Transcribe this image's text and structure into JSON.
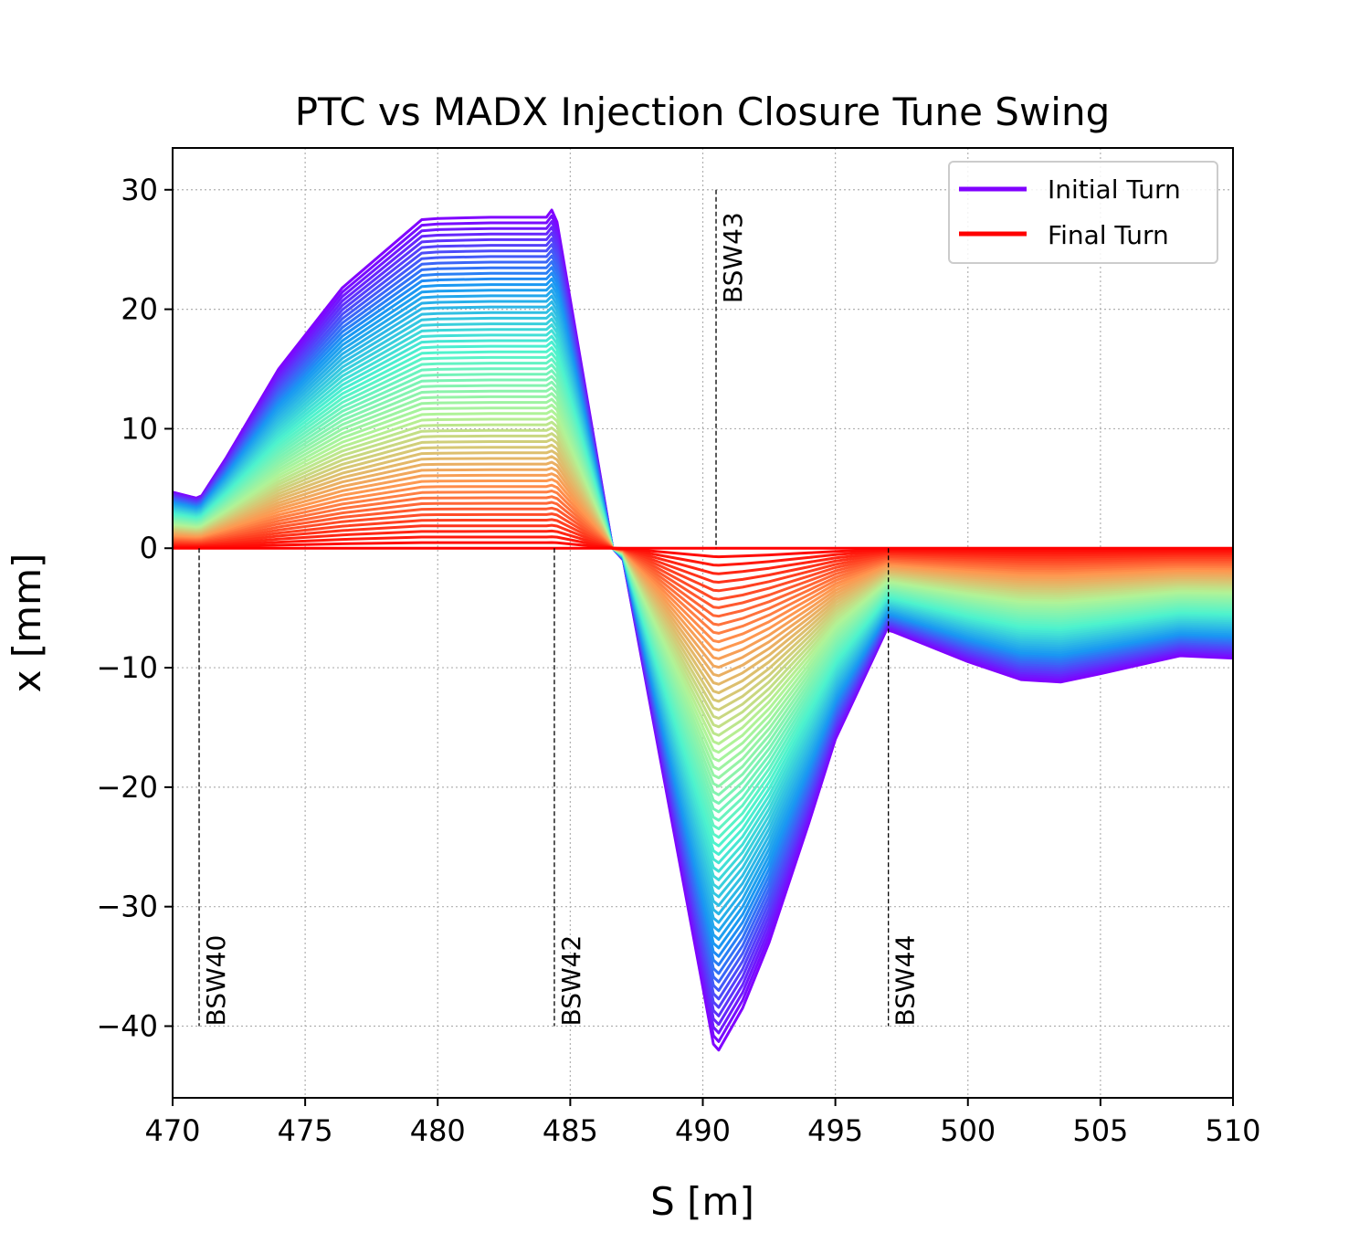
{
  "chart_data": {
    "type": "line",
    "title": "PTC vs MADX Injection Closure Tune Swing",
    "xlabel": "S [m]",
    "ylabel": "x [mm]",
    "xlim": [
      470,
      510
    ],
    "ylim": [
      -46,
      33.5
    ],
    "xticks": [
      470,
      475,
      480,
      485,
      490,
      495,
      500,
      505,
      510
    ],
    "yticks": [
      -40,
      -30,
      -20,
      -10,
      0,
      10,
      20,
      30
    ],
    "grid": true,
    "legend_position": "upper-right",
    "colormap": [
      "#8000ff",
      "#1996f3",
      "#4df3ce",
      "#b2f396",
      "#ff964f",
      "#ff0000"
    ],
    "series_count": 60,
    "series": [
      {
        "name": "Initial Turn",
        "color": "#8000ff"
      },
      {
        "name": "Final Turn",
        "color": "#ff0000"
      }
    ],
    "envelope": {
      "x": [
        470,
        470.7,
        470.9,
        471.1,
        472,
        474,
        476.4,
        479.4,
        480,
        482,
        483,
        484.1,
        484.3,
        484.5,
        486.6,
        487,
        490.4,
        490.6,
        491.5,
        492.5,
        494,
        495,
        497,
        497.05,
        497.2,
        500,
        502,
        503.5,
        505,
        508,
        510
      ],
      "initial_turn": [
        4.7,
        4.3,
        4.2,
        4.4,
        7.5,
        15,
        21.8,
        27.5,
        27.6,
        27.7,
        27.7,
        27.7,
        28.3,
        27.3,
        0,
        -1.0,
        -41.5,
        -42,
        -38.5,
        -33,
        -23,
        -16,
        -6.5,
        -6.9,
        -7.0,
        -9.5,
        -11,
        -11.2,
        -10.5,
        -9.0,
        -9.2
      ]
    },
    "markers": [
      {
        "label": "BSW40",
        "x": 471,
        "y_from": 0,
        "y_to": -40,
        "label_y": -40
      },
      {
        "label": "BSW42",
        "x": 484.4,
        "y_from": 0,
        "y_to": -40,
        "label_y": -40
      },
      {
        "label": "BSW43",
        "x": 490.5,
        "y_from": 30,
        "y_to": 0,
        "label_y": 20.5
      },
      {
        "label": "BSW44",
        "x": 497,
        "y_from": 0,
        "y_to": -40,
        "label_y": -40
      }
    ]
  }
}
